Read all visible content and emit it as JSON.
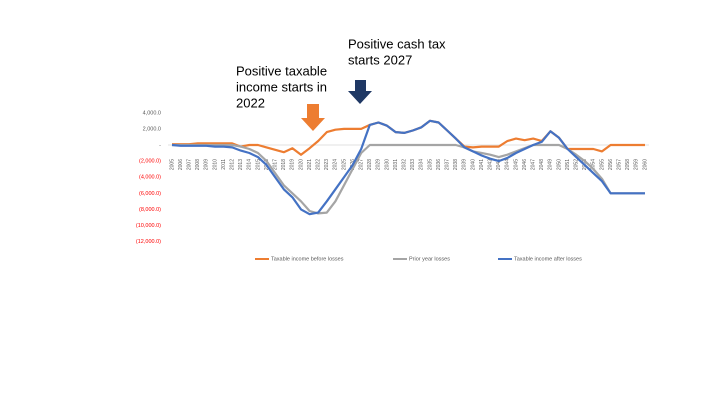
{
  "chart_data": {
    "type": "line",
    "annotations": [
      {
        "lines": [
          "Positive taxable",
          "income starts in",
          "2022"
        ],
        "color": "#ed7d31"
      },
      {
        "lines": [
          "Positive cash tax",
          "starts 2027"
        ],
        "color": "#1f3864"
      }
    ],
    "categories": [
      "2005",
      "2006",
      "2007",
      "2008",
      "2009",
      "2010",
      "2011",
      "2012",
      "2013",
      "2014",
      "2015",
      "2016",
      "2017",
      "2018",
      "2019",
      "2020",
      "2021",
      "2022",
      "2023",
      "2024",
      "2025",
      "2026",
      "2027",
      "2028",
      "2029",
      "2030",
      "2031",
      "2032",
      "2033",
      "2034",
      "2035",
      "2036",
      "2037",
      "2038",
      "2039",
      "2040",
      "2041",
      "2042",
      "2043",
      "2044",
      "2045",
      "2046",
      "2047",
      "2048",
      "2049",
      "2050",
      "2051",
      "2052",
      "2053",
      "2054",
      "2055",
      "2056",
      "2057",
      "2058",
      "2059",
      "2060"
    ],
    "series": [
      {
        "name": "Taxable income before losses",
        "color": "#ed7d31",
        "values": [
          100,
          100,
          100,
          200,
          200,
          200,
          200,
          200,
          -200,
          0,
          0,
          -300,
          -600,
          -900,
          -400,
          -1200,
          -400,
          500,
          1600,
          1900,
          2000,
          2000,
          2000,
          2500,
          2800,
          2400,
          1600,
          1500,
          1800,
          2200,
          3000,
          2800,
          1800,
          800,
          -200,
          -300,
          -200,
          -200,
          -200,
          500,
          800,
          600,
          800,
          500,
          1700,
          900,
          -500,
          -500,
          -500,
          -500,
          -800,
          0,
          0,
          0,
          0,
          0
        ]
      },
      {
        "name": "Prior year losses",
        "color": "#a5a5a5",
        "values": [
          0,
          0,
          0,
          0,
          0,
          0,
          0,
          0,
          -200,
          -500,
          -1000,
          -2000,
          -3500,
          -5000,
          -6000,
          -7000,
          -8200,
          -8500,
          -8400,
          -7000,
          -5000,
          -3000,
          -1000,
          0,
          0,
          0,
          0,
          0,
          0,
          0,
          0,
          0,
          0,
          0,
          -300,
          -800,
          -1000,
          -1200,
          -1500,
          -1200,
          -800,
          -400,
          0,
          0,
          0,
          0,
          -500,
          -1200,
          -2000,
          -3000,
          -4200,
          -6000,
          -6000,
          -6000,
          -6000,
          -6000
        ]
      },
      {
        "name": "Taxable income after losses",
        "color": "#4472c4",
        "values": [
          0,
          -100,
          -100,
          -100,
          -100,
          -200,
          -200,
          -300,
          -700,
          -1000,
          -1500,
          -2500,
          -4000,
          -5500,
          -6500,
          -8000,
          -8600,
          -8400,
          -7000,
          -5500,
          -4000,
          -2500,
          -500,
          2500,
          2800,
          2400,
          1600,
          1500,
          1800,
          2200,
          3000,
          2800,
          1800,
          800,
          -300,
          -800,
          -1300,
          -1700,
          -2000,
          -1600,
          -1000,
          -500,
          0,
          400,
          1700,
          900,
          -500,
          -1500,
          -2500,
          -3500,
          -4500,
          -6000,
          -6000,
          -6000,
          -6000,
          -6000
        ]
      }
    ],
    "ylim": [
      -12000,
      4000
    ],
    "yticks": [
      {
        "value": 4000,
        "label": "4,000.0"
      },
      {
        "value": 2000,
        "label": "2,000.0"
      },
      {
        "value": 0,
        "label": "-"
      },
      {
        "value": -2000,
        "label": "(2,000.0)"
      },
      {
        "value": -4000,
        "label": "(4,000.0)"
      },
      {
        "value": -6000,
        "label": "(6,000.0)"
      },
      {
        "value": -8000,
        "label": "(8,000.0)"
      },
      {
        "value": -10000,
        "label": "(10,000.0)"
      },
      {
        "value": -12000,
        "label": "(12,000.0)"
      }
    ],
    "tick_label_color": "#595959",
    "negative_tick_color": "#ff0000",
    "axis_color": "#d9d9d9",
    "legend": "bottom"
  }
}
